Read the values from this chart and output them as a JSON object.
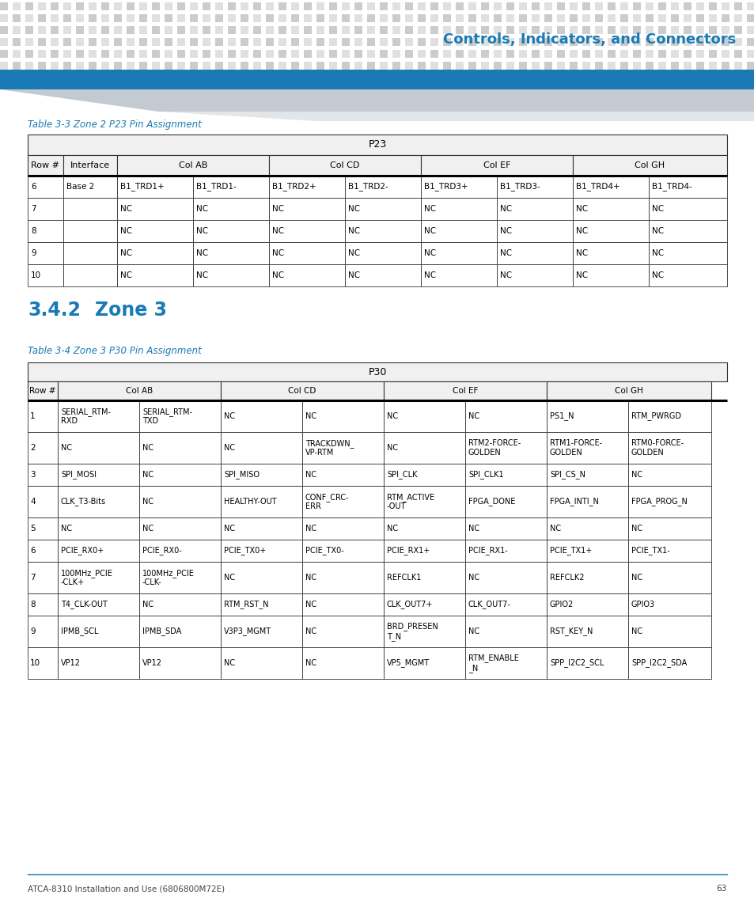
{
  "header_title": "Controls, Indicators, and Connectors",
  "header_color": "#1a7ab5",
  "blue_bar_color": "#1a7ab5",
  "table1_title": "Table 3-3 Zone 2 P23 Pin Assignment",
  "table1_main_header": "P23",
  "table1_data": [
    [
      "6",
      "Base 2",
      "B1_TRD1+",
      "B1_TRD1-",
      "B1_TRD2+",
      "B1_TRD2-",
      "B1_TRD3+",
      "B1_TRD3-",
      "B1_TRD4+",
      "B1_TRD4-"
    ],
    [
      "7",
      "",
      "NC",
      "NC",
      "NC",
      "NC",
      "NC",
      "NC",
      "NC",
      "NC"
    ],
    [
      "8",
      "",
      "NC",
      "NC",
      "NC",
      "NC",
      "NC",
      "NC",
      "NC",
      "NC"
    ],
    [
      "9",
      "",
      "NC",
      "NC",
      "NC",
      "NC",
      "NC",
      "NC",
      "NC",
      "NC"
    ],
    [
      "10",
      "",
      "NC",
      "NC",
      "NC",
      "NC",
      "NC",
      "NC",
      "NC",
      "NC"
    ]
  ],
  "section_header_num": "3.4.2",
  "section_header_text": "Zone 3",
  "section_header_color": "#1a7ab5",
  "table2_title": "Table 3-4 Zone 3 P30 Pin Assignment",
  "table2_main_header": "P30",
  "table2_data": [
    [
      "1",
      "SERIAL_RTM-\nRXD",
      "SERIAL_RTM-\nTXD",
      "NC",
      "NC",
      "NC",
      "NC",
      "PS1_N",
      "RTM_PWRGD"
    ],
    [
      "2",
      "NC",
      "NC",
      "NC",
      "TRACKDWN_\nVP-RTM",
      "NC",
      "RTM2-FORCE-\nGOLDEN",
      "RTM1-FORCE-\nGOLDEN",
      "RTM0-FORCE-\nGOLDEN"
    ],
    [
      "3",
      "SPI_MOSI",
      "NC",
      "SPI_MISO",
      "NC",
      "SPI_CLK",
      "SPI_CLK1",
      "SPI_CS_N",
      "NC"
    ],
    [
      "4",
      "CLK_T3-Bits",
      "NC",
      "HEALTHY-OUT",
      "CONF_CRC-\nERR",
      "RTM_ACTIVE\n-OUT",
      "FPGA_DONE",
      "FPGA_INTI_N",
      "FPGA_PROG_N"
    ],
    [
      "5",
      "NC",
      "NC",
      "NC",
      "NC",
      "NC",
      "NC",
      "NC",
      "NC"
    ],
    [
      "6",
      "PCIE_RX0+",
      "PCIE_RX0-",
      "PCIE_TX0+",
      "PCIE_TX0-",
      "PCIE_RX1+",
      "PCIE_RX1-",
      "PCIE_TX1+",
      "PCIE_TX1-"
    ],
    [
      "7",
      "100MHz_PCIE\n-CLK+",
      "100MHz_PCIE\n-CLK-",
      "NC",
      "NC",
      "REFCLK1",
      "NC",
      "REFCLK2",
      "NC"
    ],
    [
      "8",
      "T4_CLK-OUT",
      "NC",
      "RTM_RST_N",
      "NC",
      "CLK_OUT7+",
      "CLK_OUT7-",
      "GPIO2",
      "GPIO3"
    ],
    [
      "9",
      "IPMB_SCL",
      "IPMB_SDA",
      "V3P3_MGMT",
      "NC",
      "BRD_PRESEN\nT_N",
      "NC",
      "RST_KEY_N",
      "NC"
    ],
    [
      "10",
      "VP12",
      "VP12",
      "NC",
      "NC",
      "VP5_MGMT",
      "RTM_ENABLE\n_N",
      "SPP_I2C2_SCL",
      "SPP_I2C2_SDA"
    ]
  ],
  "footer_text": "ATCA-8310 Installation and Use (6806800M72E)",
  "footer_page": "63",
  "bg_color": "#ffffff",
  "dot_color": "#cccccc",
  "dot_color2": "#e0e0e0"
}
